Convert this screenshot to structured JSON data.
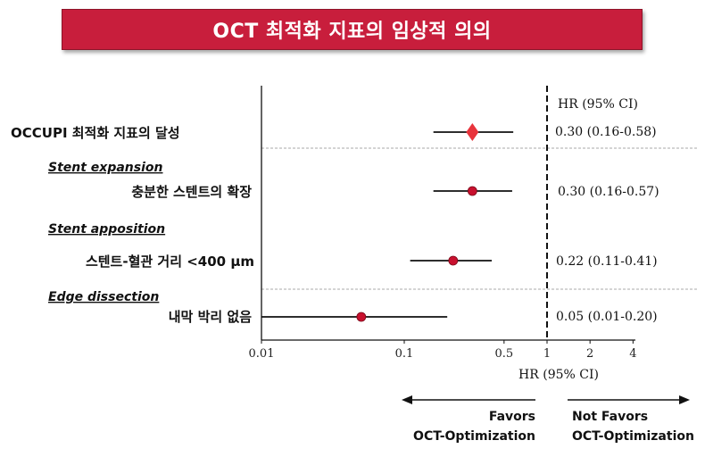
{
  "title": "OCT 최적화 지표의 임상적 의의",
  "chart_data": {
    "type": "forest",
    "xscale": "log",
    "xlim": [
      0.01,
      4
    ],
    "ticks": [
      {
        "value": 0.01,
        "label": "0.01"
      },
      {
        "value": 0.1,
        "label": "0.1"
      },
      {
        "value": 0.5,
        "label": "0.5"
      },
      {
        "value": 1,
        "label": "1"
      },
      {
        "value": 2,
        "label": "2"
      },
      {
        "value": 4,
        "label": "4"
      }
    ],
    "reference_line": 1,
    "xlabel": "HR (95% CI)",
    "column_header": "HR (95% CI)",
    "groups": [
      {
        "name": "",
        "rows": [
          {
            "label": "OCCUPI 최적화 지표의 달성",
            "hr": 0.3,
            "lo": 0.16,
            "hi": 0.58,
            "text": "0.30 (0.16-0.58)",
            "marker": "diamond"
          }
        ]
      },
      {
        "name": "Stent expansion",
        "rows": [
          {
            "label": "충분한 스텐트의 확장",
            "hr": 0.3,
            "lo": 0.16,
            "hi": 0.57,
            "text": "0.30 (0.16-0.57)",
            "marker": "dot"
          }
        ]
      },
      {
        "name": "Stent apposition",
        "rows": [
          {
            "label": "스텐트-혈관 거리 <400 μm",
            "hr": 0.22,
            "lo": 0.11,
            "hi": 0.41,
            "text": "0.22 (0.11-0.41)",
            "marker": "dot"
          }
        ]
      },
      {
        "name": "Edge dissection",
        "rows": [
          {
            "label": "내막 박리 없음",
            "hr": 0.05,
            "lo": 0.01,
            "hi": 0.2,
            "text": "0.05 (0.01-0.20)",
            "marker": "dot"
          }
        ]
      }
    ],
    "favors_left": [
      "Favors",
      "OCT-Optimization"
    ],
    "favors_right": [
      "Not Favors",
      "OCT-Optimization"
    ],
    "colors": {
      "marker": "#c8102e",
      "diamond": "#e8343c",
      "line": "#111111"
    }
  }
}
